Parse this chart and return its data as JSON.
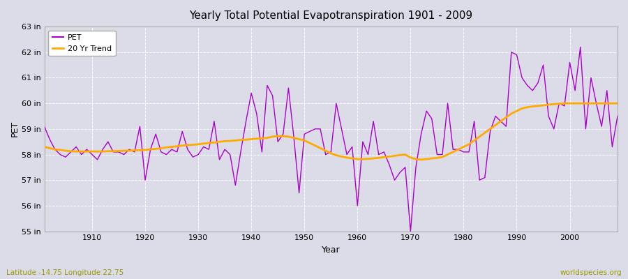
{
  "title": "Yearly Total Potential Evapotranspiration 1901 - 2009",
  "xlabel": "Year",
  "ylabel": "PET",
  "subtitle_left": "Latitude -14.75 Longitude 22.75",
  "subtitle_right": "worldspecies.org",
  "pet_color": "#aa00cc",
  "trend_color": "#ffaa00",
  "bg_color": "#dcdce8",
  "plot_bg_color": "#dcdce8",
  "grid_color": "#ffffff",
  "border_color": "#aaaaaa",
  "ylim": [
    55,
    63
  ],
  "yticks": [
    55,
    56,
    57,
    58,
    59,
    60,
    61,
    62,
    63
  ],
  "ytick_labels": [
    "55 in",
    "56 in",
    "57 in",
    "58 in",
    "59 in",
    "60 in",
    "61 in",
    "62 in",
    "63 in"
  ],
  "xticks": [
    1910,
    1920,
    1930,
    1940,
    1950,
    1960,
    1970,
    1980,
    1990,
    2000
  ],
  "years": [
    1901,
    1902,
    1903,
    1904,
    1905,
    1906,
    1907,
    1908,
    1909,
    1910,
    1911,
    1912,
    1913,
    1914,
    1915,
    1916,
    1917,
    1918,
    1919,
    1920,
    1921,
    1922,
    1923,
    1924,
    1925,
    1926,
    1927,
    1928,
    1929,
    1930,
    1931,
    1932,
    1933,
    1934,
    1935,
    1936,
    1937,
    1938,
    1939,
    1940,
    1941,
    1942,
    1943,
    1944,
    1945,
    1946,
    1947,
    1948,
    1949,
    1950,
    1951,
    1952,
    1953,
    1954,
    1955,
    1956,
    1957,
    1958,
    1959,
    1960,
    1961,
    1962,
    1963,
    1964,
    1965,
    1966,
    1967,
    1968,
    1969,
    1970,
    1971,
    1972,
    1973,
    1974,
    1975,
    1976,
    1977,
    1978,
    1979,
    1980,
    1981,
    1982,
    1983,
    1984,
    1985,
    1986,
    1987,
    1988,
    1989,
    1990,
    1991,
    1992,
    1993,
    1994,
    1995,
    1996,
    1997,
    1998,
    1999,
    2000,
    2001,
    2002,
    2003,
    2004,
    2005,
    2006,
    2007,
    2008,
    2009
  ],
  "pet_values": [
    59.1,
    58.6,
    58.2,
    58.0,
    57.9,
    58.1,
    58.3,
    58.0,
    58.2,
    58.0,
    57.8,
    58.2,
    58.5,
    58.1,
    58.1,
    58.0,
    58.2,
    58.1,
    59.1,
    57.0,
    58.2,
    58.8,
    58.1,
    58.0,
    58.2,
    58.1,
    58.9,
    58.2,
    57.9,
    58.0,
    58.3,
    58.2,
    59.3,
    57.8,
    58.2,
    58.0,
    56.8,
    58.1,
    59.3,
    60.4,
    59.6,
    58.1,
    60.7,
    60.3,
    58.5,
    58.8,
    60.6,
    58.7,
    56.5,
    58.8,
    58.9,
    59.0,
    59.0,
    58.0,
    58.1,
    60.0,
    59.0,
    58.0,
    58.3,
    56.0,
    58.5,
    58.0,
    59.3,
    58.0,
    58.1,
    57.6,
    57.0,
    57.3,
    57.5,
    55.0,
    57.5,
    58.8,
    59.7,
    59.4,
    58.0,
    58.0,
    60.0,
    58.2,
    58.2,
    58.1,
    58.1,
    59.3,
    57.0,
    57.1,
    58.9,
    59.5,
    59.3,
    59.1,
    62.0,
    61.9,
    61.0,
    60.7,
    60.5,
    60.8,
    61.5,
    59.5,
    59.0,
    60.0,
    59.9,
    61.6,
    60.5,
    62.2,
    59.0,
    61.0,
    60.0,
    59.1,
    60.5,
    58.3,
    59.5
  ],
  "trend_years": [
    1901,
    1902,
    1903,
    1904,
    1905,
    1906,
    1907,
    1908,
    1909,
    1910,
    1911,
    1912,
    1913,
    1914,
    1915,
    1916,
    1917,
    1918,
    1919,
    1920,
    1921,
    1922,
    1923,
    1924,
    1925,
    1926,
    1927,
    1928,
    1929,
    1930,
    1931,
    1932,
    1933,
    1934,
    1935,
    1936,
    1937,
    1938,
    1939,
    1940,
    1941,
    1942,
    1943,
    1944,
    1945,
    1946,
    1947,
    1948,
    1949,
    1950,
    1951,
    1952,
    1953,
    1954,
    1955,
    1956,
    1957,
    1958,
    1959,
    1960,
    1961,
    1962,
    1963,
    1964,
    1965,
    1966,
    1967,
    1968,
    1969,
    1970,
    1971,
    1972,
    1973,
    1974,
    1975,
    1976,
    1977,
    1978,
    1979,
    1980,
    1981,
    1982,
    1983,
    1984,
    1985,
    1986,
    1987,
    1988,
    1989,
    1990,
    1991,
    1992,
    1993,
    1994,
    1995,
    1996,
    1997,
    1998,
    1999,
    2000,
    2001,
    2002,
    2003,
    2004,
    2005,
    2006,
    2007,
    2008,
    2009
  ],
  "trend_values": [
    58.3,
    58.25,
    58.2,
    58.18,
    58.15,
    58.13,
    58.12,
    58.12,
    58.12,
    58.12,
    58.12,
    58.12,
    58.13,
    58.13,
    58.14,
    58.15,
    58.15,
    58.16,
    58.17,
    58.18,
    58.2,
    58.22,
    58.25,
    58.28,
    58.3,
    58.32,
    58.35,
    58.37,
    58.38,
    58.4,
    58.43,
    58.45,
    58.47,
    58.5,
    58.52,
    58.53,
    58.55,
    58.57,
    58.58,
    58.6,
    58.62,
    58.63,
    58.65,
    58.7,
    58.72,
    58.72,
    58.7,
    58.65,
    58.6,
    58.55,
    58.45,
    58.35,
    58.25,
    58.15,
    58.05,
    57.97,
    57.92,
    57.88,
    57.85,
    57.82,
    57.82,
    57.83,
    57.85,
    57.87,
    57.9,
    57.92,
    57.95,
    57.98,
    58.0,
    57.88,
    57.82,
    57.8,
    57.82,
    57.85,
    57.87,
    57.9,
    58.0,
    58.1,
    58.2,
    58.3,
    58.4,
    58.55,
    58.7,
    58.85,
    59.0,
    59.15,
    59.3,
    59.45,
    59.6,
    59.7,
    59.8,
    59.85,
    59.88,
    59.9,
    59.92,
    59.95,
    59.97,
    59.98,
    60.0,
    60.0,
    60.0,
    60.0,
    60.0,
    60.0,
    60.0,
    60.0,
    60.0,
    60.0,
    60.0
  ]
}
